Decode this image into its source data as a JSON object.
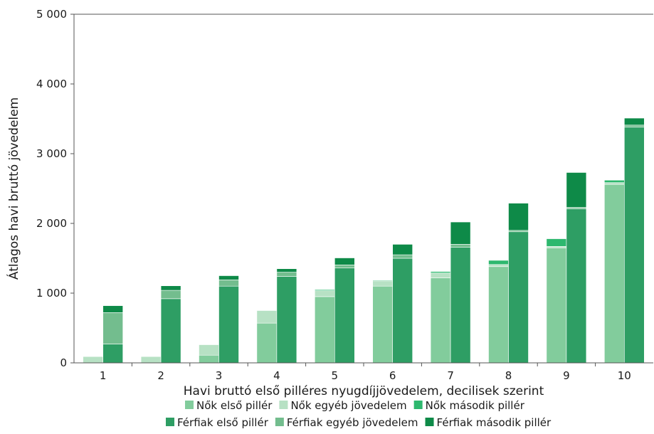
{
  "chart_data": {
    "type": "bar",
    "stacked": true,
    "title": "",
    "xlabel": "Havi bruttó első pilléres nyugdíjjövedelem, decilisek szerint",
    "ylabel": "Átlagos havi bruttó jövedelem",
    "ylim": [
      0,
      5000
    ],
    "yticks": [
      0,
      1000,
      2000,
      3000,
      4000,
      5000
    ],
    "ytick_labels": [
      "0",
      "1 000",
      "2 000",
      "3 000",
      "4 000",
      "5 000"
    ],
    "categories": [
      "1",
      "2",
      "3",
      "4",
      "5",
      "6",
      "7",
      "8",
      "9",
      "10"
    ],
    "grid": false,
    "legend_position": "bottom",
    "groups": [
      {
        "name": "Nők",
        "series": [
          {
            "name": "Nők első pillér",
            "color": "#82cc9c",
            "values": [
              0,
              0,
              110,
              570,
              950,
              1100,
              1220,
              1380,
              1650,
              2560
            ]
          },
          {
            "name": "Nők egyéb jövedelem",
            "color": "#b7e1c4",
            "values": [
              90,
              90,
              150,
              180,
              85,
              75,
              70,
              30,
              20,
              25
            ]
          },
          {
            "name": "Nők második pillér",
            "color": "#2db86e",
            "values": [
              0,
              0,
              0,
              0,
              15,
              10,
              20,
              60,
              110,
              35
            ]
          }
        ]
      },
      {
        "name": "Férfiak",
        "series": [
          {
            "name": "Férfiak első pillér",
            "color": "#2e9e64",
            "values": [
              270,
              920,
              1100,
              1240,
              1360,
              1500,
              1660,
              1880,
              2210,
              3380
            ]
          },
          {
            "name": "Férfiak egyéb jövedelem",
            "color": "#73bd8e",
            "values": [
              450,
              120,
              90,
              60,
              45,
              50,
              40,
              20,
              20,
              30
            ]
          },
          {
            "name": "Férfiak második pillér",
            "color": "#0e8a48",
            "values": [
              100,
              65,
              60,
              50,
              100,
              150,
              320,
              390,
              500,
              100
            ]
          }
        ]
      }
    ]
  }
}
